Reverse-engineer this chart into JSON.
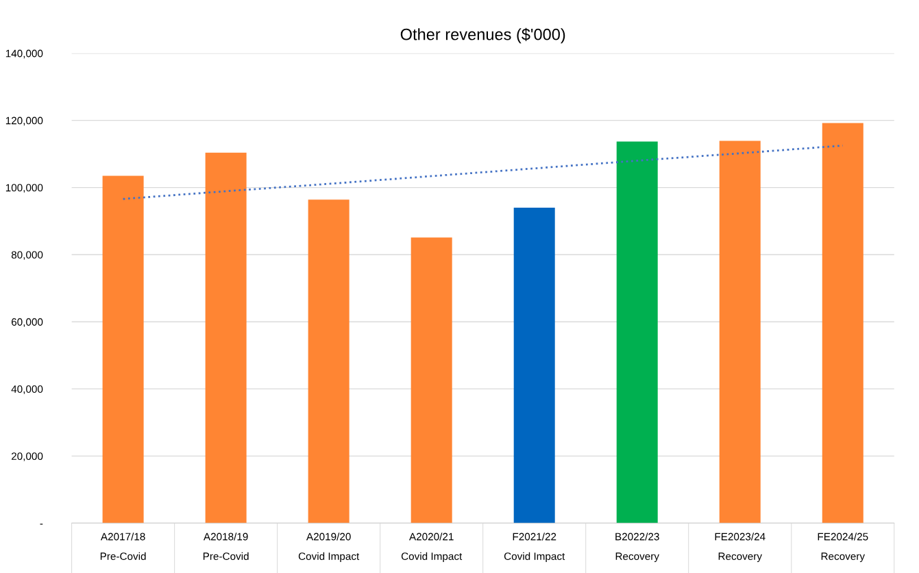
{
  "chart_data": {
    "type": "bar",
    "title": "Other revenues ($'000)",
    "categories": [
      "A2017/18\nPre-Covid",
      "A2018/19\nPre-Covid",
      "A2019/20\nCovid Impact",
      "A2020/21\nCovid Impact",
      "F2021/22\nCovid Impact",
      "B2022/23\nRecovery",
      "FE2023/24\nRecovery",
      "FE2024/25\nRecovery"
    ],
    "series": [
      {
        "colors": [
          "#ff8533",
          "#ff8533",
          "#ff8533",
          "#ff8533",
          "#0066c0",
          "#00b050",
          "#ff8533",
          "#ff8533"
        ],
        "values": [
          103500,
          110400,
          96400,
          85100,
          94000,
          113700,
          113900,
          119200
        ]
      },
      {
        "type": "line",
        "color": "#4472c4",
        "line_style": "dotted",
        "values": [
          96600,
          98900,
          101100,
          103400,
          105700,
          108000,
          110200,
          112500
        ]
      }
    ],
    "ylim": [
      0,
      140000
    ],
    "yticks": [
      {
        "value": 0,
        "label": "-"
      },
      {
        "value": 20000,
        "label": "20,000"
      },
      {
        "value": 40000,
        "label": "40,000"
      },
      {
        "value": 60000,
        "label": "60,000"
      },
      {
        "value": 80000,
        "label": "80,000"
      },
      {
        "value": 100000,
        "label": "100,000"
      },
      {
        "value": 120000,
        "label": "120,000"
      },
      {
        "value": 140000,
        "label": "140,000"
      }
    ],
    "grid": "y",
    "legend": false
  }
}
